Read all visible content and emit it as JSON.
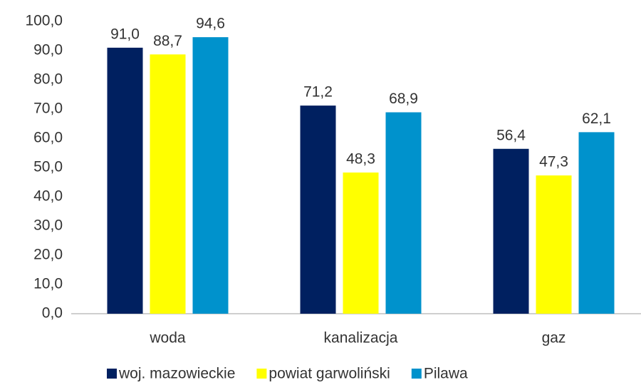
{
  "chart_data": {
    "type": "bar",
    "categories": [
      "woda",
      "kanalizacja",
      "gaz"
    ],
    "series": [
      {
        "name": "woj. mazowieckie",
        "color": "#002060",
        "values": [
          91.0,
          71.2,
          56.4
        ],
        "value_labels": [
          "91,0",
          "71,2",
          "56,4"
        ]
      },
      {
        "name": "powiat garwoliński",
        "color": "#ffff00",
        "values": [
          88.7,
          48.3,
          47.3
        ],
        "value_labels": [
          "88,7",
          "48,3",
          "47,3"
        ]
      },
      {
        "name": "Pilawa",
        "color": "#0092cc",
        "values": [
          94.6,
          68.9,
          62.1
        ],
        "value_labels": [
          "94,6",
          "68,9",
          "62,1"
        ]
      }
    ],
    "ylim": [
      0,
      100
    ],
    "yticks": [
      {
        "value": 0,
        "label": "0,0"
      },
      {
        "value": 10,
        "label": "10,0"
      },
      {
        "value": 20,
        "label": "20,0"
      },
      {
        "value": 30,
        "label": "30,0"
      },
      {
        "value": 40,
        "label": "40,0"
      },
      {
        "value": 50,
        "label": "50,0"
      },
      {
        "value": 60,
        "label": "60,0"
      },
      {
        "value": 70,
        "label": "70,0"
      },
      {
        "value": 80,
        "label": "80,0"
      },
      {
        "value": 90,
        "label": "90,0"
      },
      {
        "value": 100,
        "label": "100,0"
      }
    ],
    "grid": false,
    "legend": "bottom"
  }
}
